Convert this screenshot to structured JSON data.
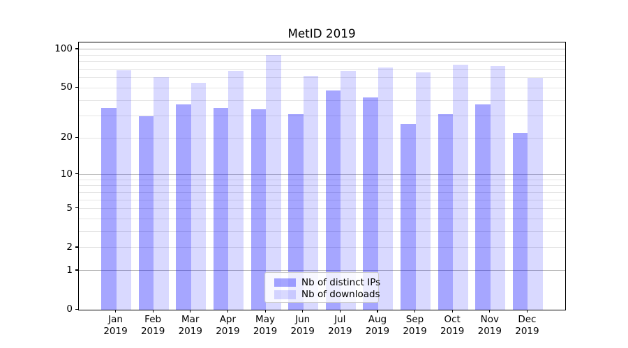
{
  "chart_data": {
    "type": "bar",
    "title": "MetID 2019",
    "categories": [
      "Jan",
      "Feb",
      "Mar",
      "Apr",
      "May",
      "Jun",
      "Jul",
      "Aug",
      "Sep",
      "Oct",
      "Nov",
      "Dec"
    ],
    "category_year": "2019",
    "series": [
      {
        "name": "Nb of distinct IPs",
        "color": "rgba(0,0,255,0.35)",
        "values": [
          35,
          30,
          37,
          35,
          34,
          31,
          48,
          42,
          26,
          31,
          37,
          22
        ]
      },
      {
        "name": "Nb of downloads",
        "color": "rgba(0,0,255,0.15)",
        "values": [
          69,
          61,
          55,
          68,
          90,
          62,
          68,
          72,
          66,
          76,
          74,
          60
        ]
      }
    ],
    "xlabel": "",
    "ylabel": "",
    "yscale": "log1p",
    "ylim": [
      0,
      114
    ],
    "yticks": [
      0,
      1,
      2,
      5,
      10,
      20,
      50,
      100
    ],
    "grid": {
      "orientation": "horizontal",
      "major_values": [
        1,
        10,
        100
      ],
      "minor_values": [
        2,
        3,
        4,
        5,
        6,
        7,
        8,
        9,
        20,
        30,
        40,
        50,
        60,
        70,
        80,
        90
      ],
      "major_color": "#b2b2b2",
      "minor_color": "#e4e4e4"
    },
    "legend_position": "lower center",
    "colors": {
      "axis": "#000000",
      "background": "#ffffff",
      "legend_border": "#cccccc"
    }
  }
}
